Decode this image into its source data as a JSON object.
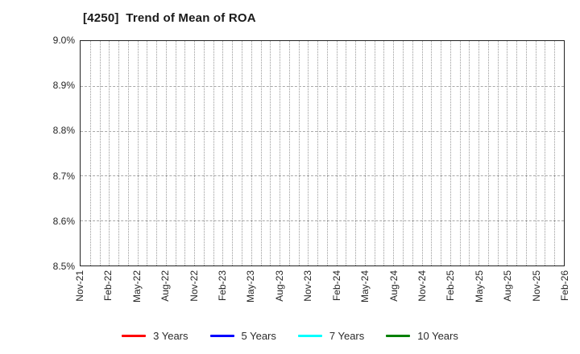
{
  "chart_data": {
    "type": "line",
    "title": "[4250]  Trend of Mean of ROA",
    "xlabel": "",
    "ylabel": "",
    "y_unit": "%",
    "ylim": [
      8.5,
      9.0
    ],
    "y_tick_labels": [
      "9.0%",
      "8.9%",
      "8.8%",
      "8.7%",
      "8.6%",
      "8.5%"
    ],
    "y_divisions": 5,
    "x_tick_labels": [
      "Nov-21",
      "Feb-22",
      "May-22",
      "Aug-22",
      "Nov-22",
      "Feb-23",
      "May-23",
      "Aug-23",
      "Nov-23",
      "Feb-24",
      "May-24",
      "Aug-24",
      "Nov-24",
      "Feb-25",
      "May-25",
      "Aug-25",
      "Nov-25",
      "Feb-26"
    ],
    "x_divisions": 51,
    "grid": true,
    "legend_position": "bottom",
    "series": [
      {
        "name": "3 Years",
        "color": "#ff0000",
        "values": []
      },
      {
        "name": "5 Years",
        "color": "#0000ff",
        "values": []
      },
      {
        "name": "7 Years",
        "color": "#00ffff",
        "values": []
      },
      {
        "name": "10 Years",
        "color": "#008000",
        "values": []
      }
    ]
  }
}
